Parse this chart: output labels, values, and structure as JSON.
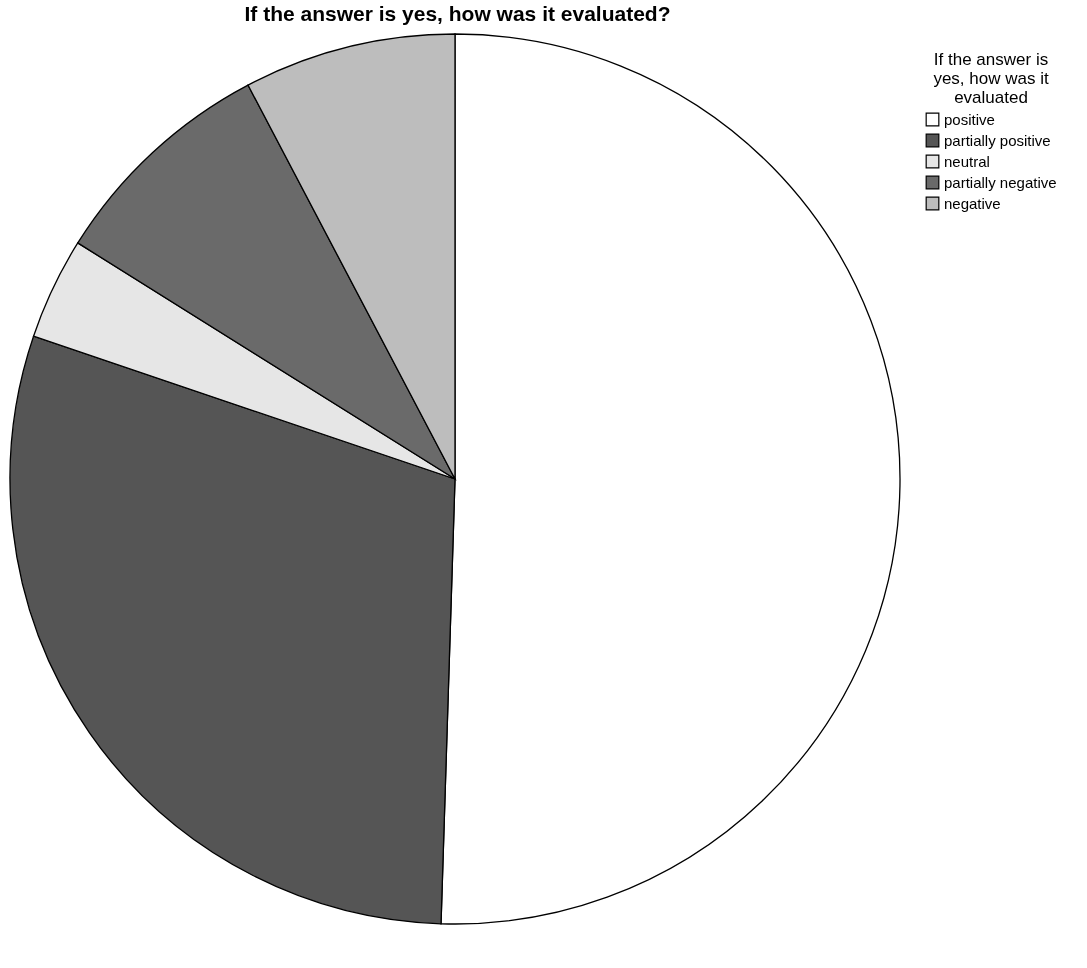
{
  "chart_data": {
    "type": "pie",
    "title": "If the answer is yes, how was it evaluated?",
    "legend_title": "If the answer is yes, how was it evaluated",
    "categories": [
      "positive",
      "partially positive",
      "neutral",
      "partially negative",
      "negative"
    ],
    "values": [
      50.5,
      29.7,
      3.7,
      8.4,
      7.7
    ],
    "colors": [
      "#ffffff",
      "#555555",
      "#e6e6e6",
      "#6a6a6a",
      "#bdbdbd"
    ],
    "legend": "top right"
  }
}
